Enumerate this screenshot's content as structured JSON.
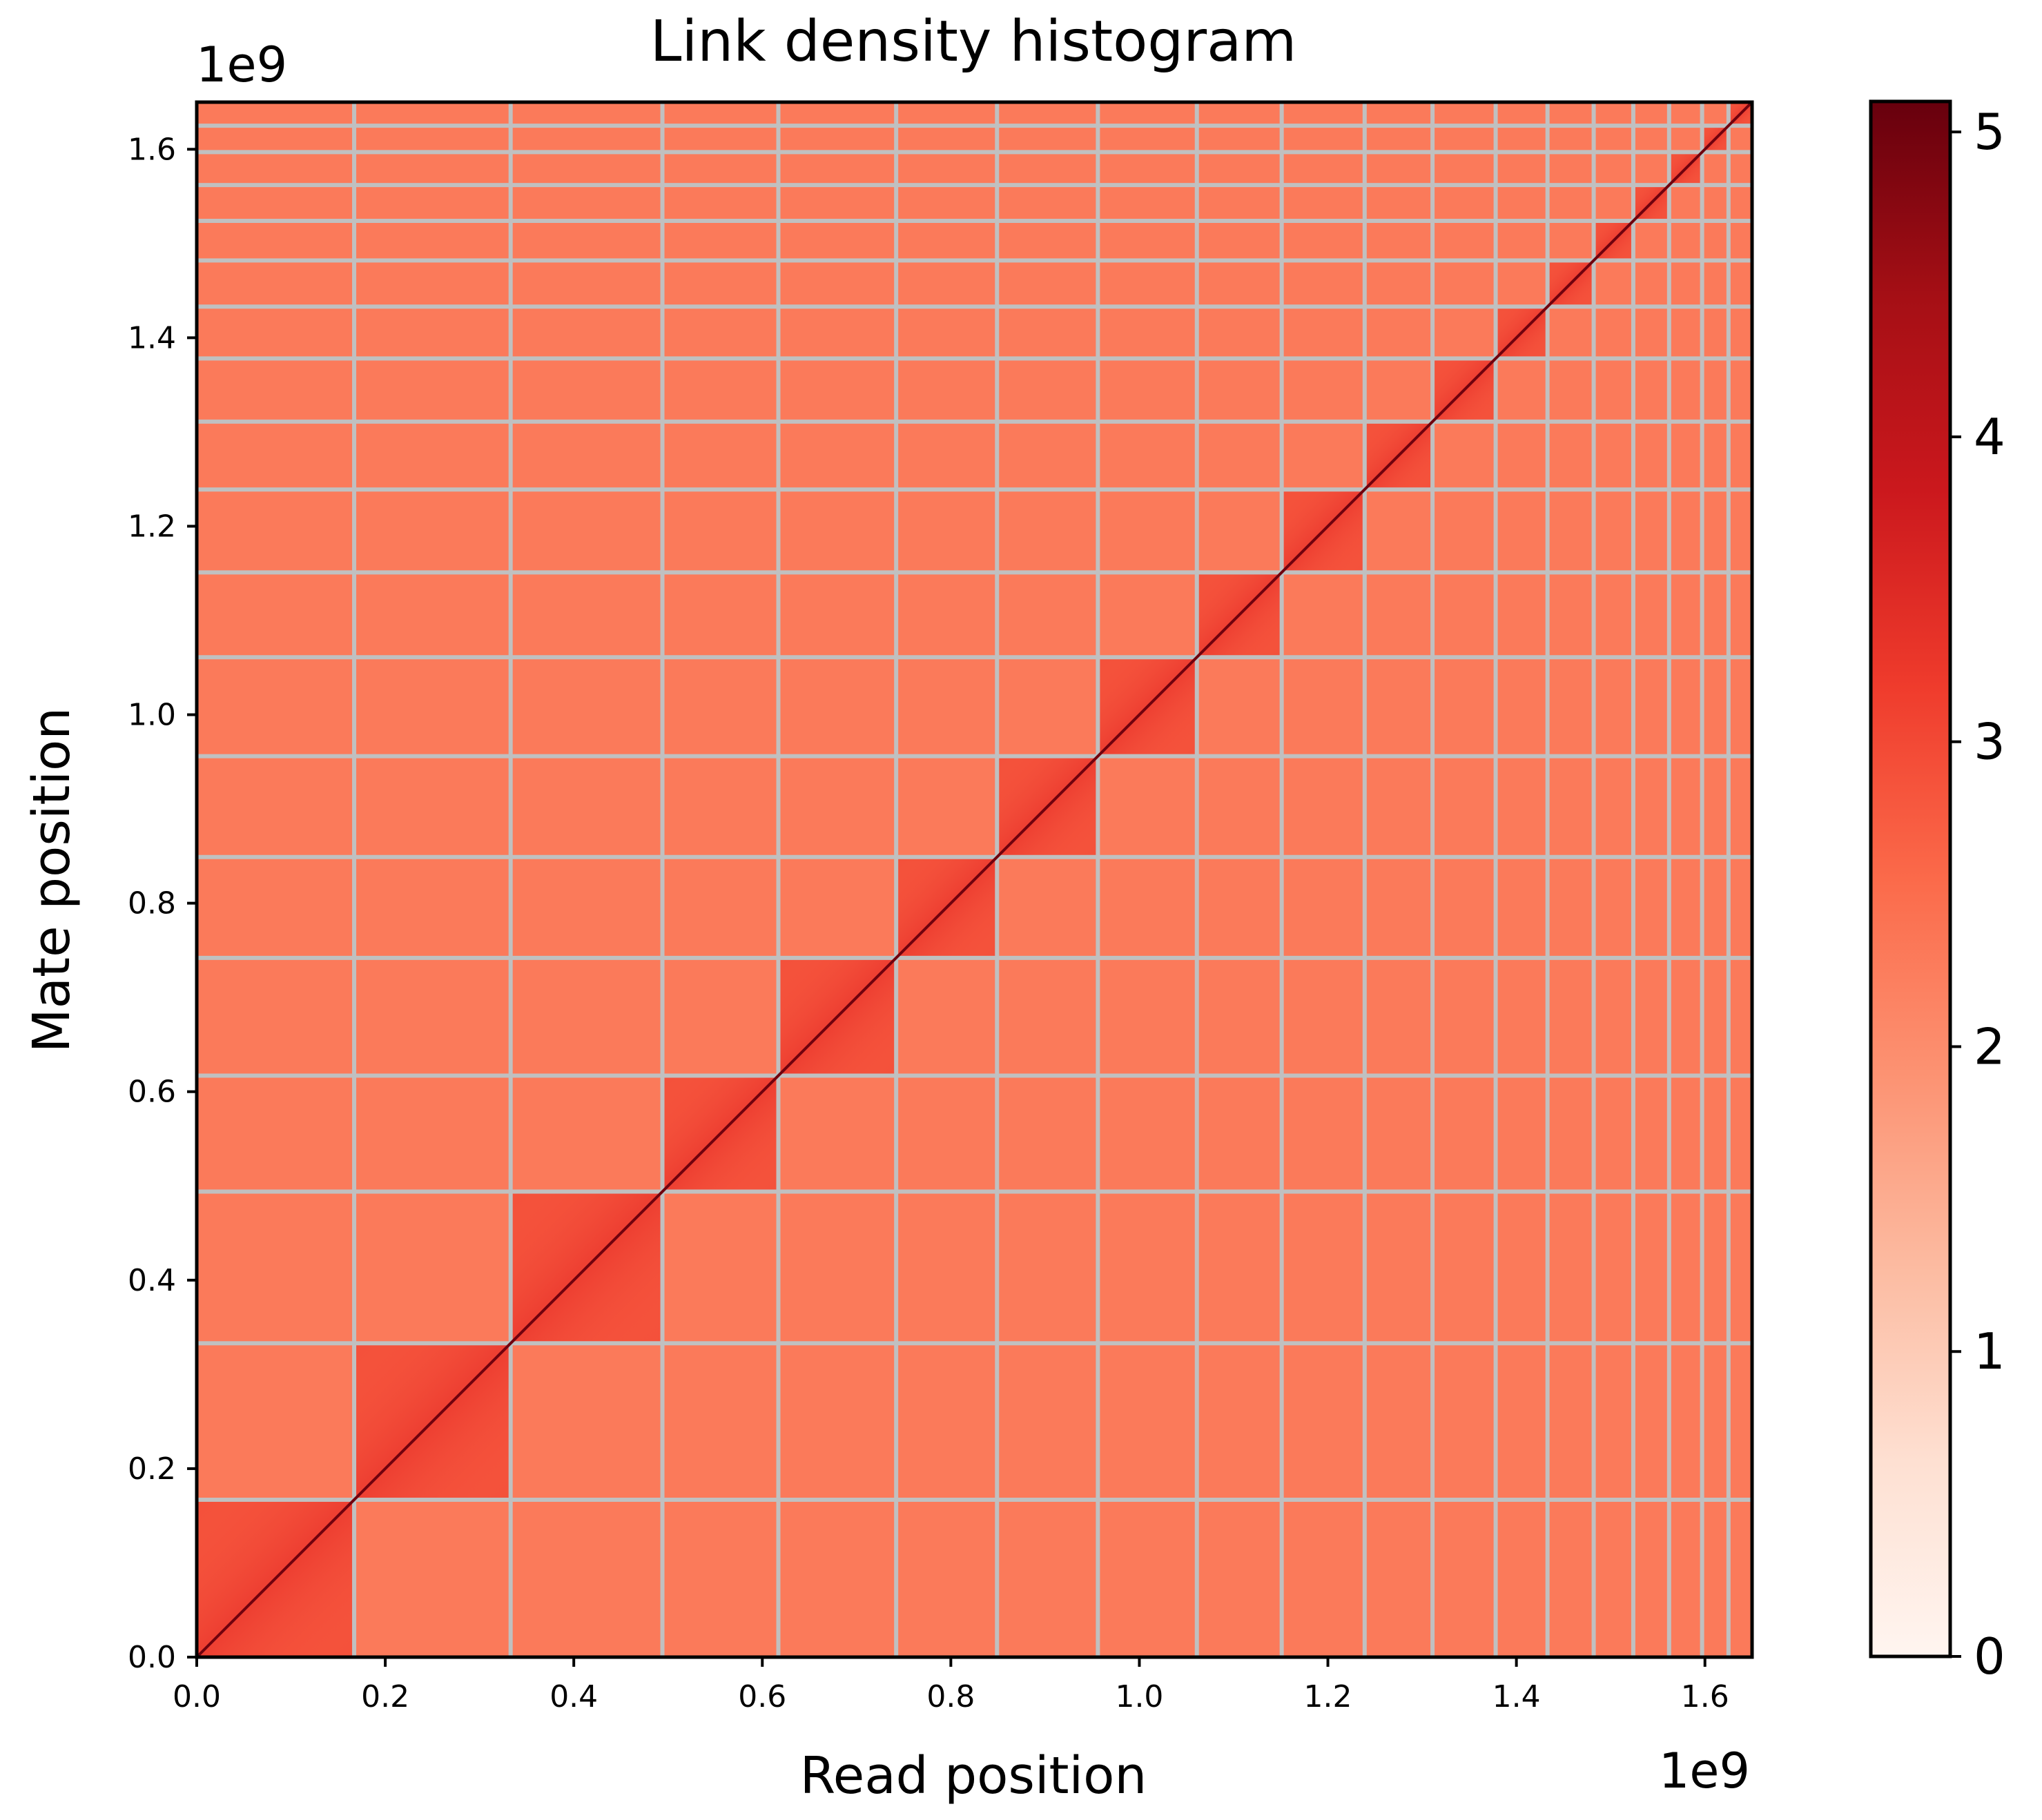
{
  "chart_data": {
    "type": "heatmap",
    "title": "Link density histogram",
    "xlabel": "Read position",
    "ylabel": "Mate position",
    "x_offset_text": "1e9",
    "y_offset_text": "1e9",
    "xlim": [
      0.0,
      1.65
    ],
    "ylim": [
      0.0,
      1.65
    ],
    "xticks": [
      0.0,
      0.2,
      0.4,
      0.6,
      0.8,
      1.0,
      1.2,
      1.4,
      1.6
    ],
    "yticks": [
      0.0,
      0.2,
      0.4,
      0.6,
      0.8,
      1.0,
      1.2,
      1.4,
      1.6
    ],
    "xtick_labels": [
      "0.0",
      "0.2",
      "0.4",
      "0.6",
      "0.8",
      "1.0",
      "1.2",
      "1.4",
      "1.6"
    ],
    "ytick_labels": [
      "0.0",
      "0.2",
      "0.4",
      "0.6",
      "0.8",
      "1.0",
      "1.2",
      "1.4",
      "1.6"
    ],
    "colorscale": "Reds",
    "colorbar": {
      "range": [
        0,
        5.1
      ],
      "ticks": [
        0,
        1,
        2,
        3,
        4,
        5
      ],
      "tick_labels": [
        "0",
        "1",
        "2",
        "3",
        "4",
        "5"
      ]
    },
    "chromosome_boundaries": [
      0.0,
      0.167,
      0.333,
      0.494,
      0.617,
      0.742,
      0.849,
      0.956,
      1.061,
      1.151,
      1.239,
      1.311,
      1.378,
      1.433,
      1.482,
      1.524,
      1.562,
      1.597,
      1.625,
      1.65
    ],
    "values": {
      "background_inter": 2.3,
      "within_block": 2.9,
      "diagonal": 5.0
    },
    "grid_color": "#c0c0c0"
  }
}
